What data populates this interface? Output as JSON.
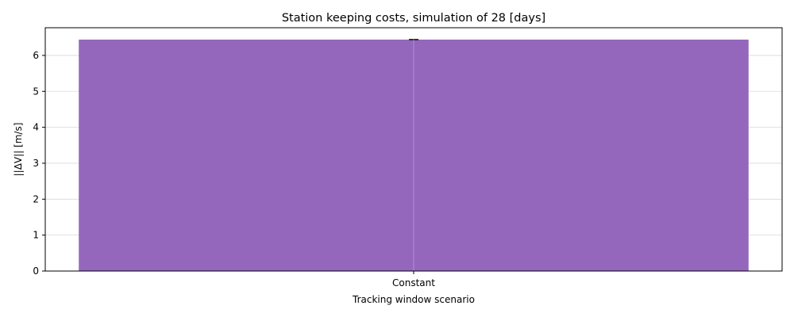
{
  "chart_data": {
    "type": "bar",
    "title": "Station keeping costs, simulation of 28 [days]",
    "xlabel": "Tracking window scenario",
    "ylabel": "||ΔV|| [m/s]",
    "categories": [
      "Constant"
    ],
    "values": [
      6.44
    ],
    "error": [
      0.0
    ],
    "ylim": [
      0,
      6.77
    ],
    "yticks": [
      0,
      1,
      2,
      3,
      4,
      5,
      6
    ],
    "grid": true,
    "legend": "none",
    "colors": {
      "bar": "#9467bd",
      "errorbar": "#222222",
      "grid": "#d9d9d9",
      "axes": "#000000"
    }
  }
}
